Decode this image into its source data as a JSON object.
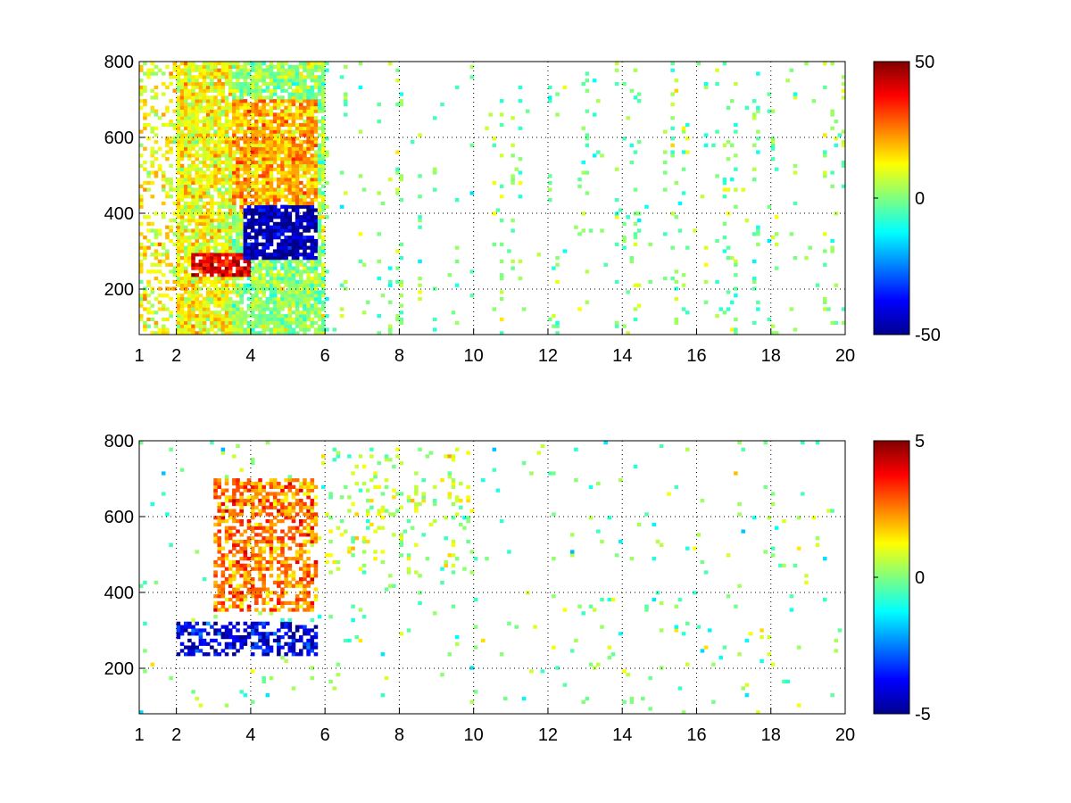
{
  "chart_data": [
    {
      "type": "heatmap",
      "title": "",
      "xlabel": "",
      "ylabel": "",
      "xlim": [
        1,
        20
      ],
      "ylim": [
        80,
        800
      ],
      "xticks": [
        1,
        2,
        4,
        6,
        8,
        10,
        12,
        14,
        16,
        18,
        20
      ],
      "yticks": [
        200,
        400,
        600,
        800
      ],
      "grid": true,
      "grid_style": "dotted",
      "colormap": "jet",
      "colorbar": {
        "location": "right",
        "clim": [
          -50,
          50
        ],
        "ticks": [
          -50,
          0,
          50
        ]
      },
      "features": [
        {
          "description": "warm core",
          "x_range": [
            2.4,
            4.0
          ],
          "y_range": [
            230,
            300
          ],
          "value": 40
        },
        {
          "description": "cold band",
          "x_range": [
            3.8,
            5.8
          ],
          "y_range": [
            280,
            420
          ],
          "value": -45
        },
        {
          "description": "positive diagonal band",
          "x_range": [
            3.5,
            5.8
          ],
          "y_range": [
            400,
            700
          ],
          "value": 20
        },
        {
          "description": "sparse near-zero stripes",
          "x_range": [
            6,
            20
          ],
          "y_range": [
            80,
            800
          ],
          "value": 0
        }
      ]
    },
    {
      "type": "heatmap",
      "title": "",
      "xlabel": "",
      "ylabel": "",
      "xlim": [
        1,
        20
      ],
      "ylim": [
        80,
        800
      ],
      "xticks": [
        1,
        2,
        4,
        6,
        8,
        10,
        12,
        14,
        16,
        18,
        20
      ],
      "yticks": [
        200,
        400,
        600,
        800
      ],
      "grid": true,
      "grid_style": "dotted",
      "colormap": "jet",
      "colorbar": {
        "location": "right",
        "clim": [
          -5,
          5
        ],
        "ticks": [
          -5,
          0,
          5
        ]
      },
      "features": [
        {
          "description": "cold band",
          "x_range": [
            2.0,
            5.8
          ],
          "y_range": [
            230,
            320
          ],
          "value": -4
        },
        {
          "description": "warm cluster",
          "x_range": [
            3.0,
            5.8
          ],
          "y_range": [
            350,
            700
          ],
          "value": 2.5
        },
        {
          "description": "sparse scatter",
          "x_range": [
            6,
            10
          ],
          "y_range": [
            450,
            780
          ],
          "value": 0.5
        }
      ]
    }
  ]
}
